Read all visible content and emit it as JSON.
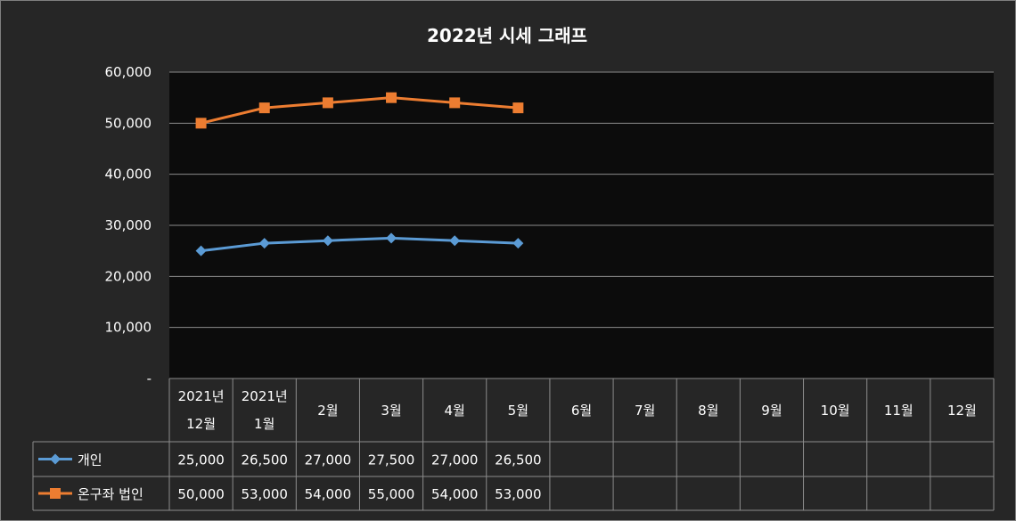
{
  "chart_data": {
    "type": "line",
    "title": "2022년 시세 그래프",
    "categories": [
      [
        "2021년",
        "12월"
      ],
      [
        "2021년",
        "1월"
      ],
      [
        "2월"
      ],
      [
        "3월"
      ],
      [
        "4월"
      ],
      [
        "5월"
      ],
      [
        "6월"
      ],
      [
        "7월"
      ],
      [
        "8월"
      ],
      [
        "9월"
      ],
      [
        "10월"
      ],
      [
        "11월"
      ],
      [
        "12월"
      ]
    ],
    "series": [
      {
        "name": "개인",
        "color": "#5b9bd5",
        "marker": "diamond",
        "values": [
          25000,
          26500,
          27000,
          27500,
          27000,
          26500,
          null,
          null,
          null,
          null,
          null,
          null,
          null
        ],
        "labels": [
          "25,000",
          "26,500",
          "27,000",
          "27,500",
          "27,000",
          "26,500",
          "",
          "",
          "",
          "",
          "",
          "",
          ""
        ]
      },
      {
        "name": "온구좌 법인",
        "color": "#ed7d31",
        "marker": "square",
        "values": [
          50000,
          53000,
          54000,
          55000,
          54000,
          53000,
          null,
          null,
          null,
          null,
          null,
          null,
          null
        ],
        "labels": [
          "50,000",
          "53,000",
          "54,000",
          "55,000",
          "54,000",
          "53,000",
          "",
          "",
          "",
          "",
          "",
          "",
          ""
        ]
      }
    ],
    "ylim": [
      0,
      60000
    ],
    "yticks": [
      {
        "value": 60000,
        "label": "60,000"
      },
      {
        "value": 50000,
        "label": "50,000"
      },
      {
        "value": 40000,
        "label": "40,000"
      },
      {
        "value": 30000,
        "label": "30,000"
      },
      {
        "value": 20000,
        "label": "20,000"
      },
      {
        "value": 10000,
        "label": "10,000"
      },
      {
        "value": 0,
        "label": "-"
      }
    ],
    "grid": true,
    "legend": "data-table"
  }
}
